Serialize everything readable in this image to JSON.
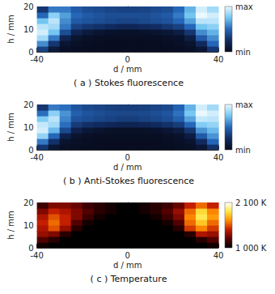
{
  "chart_data": [
    {
      "type": "heatmap",
      "title": "( a ) Stokes fluorescence",
      "x_label": "d / mm",
      "y_label": "h / mm",
      "xlim": [
        -40,
        40
      ],
      "xticks": [
        -40,
        0,
        40
      ],
      "ylim": [
        0,
        20
      ],
      "yticks": [
        0,
        10,
        20
      ],
      "x_edges": [
        -40,
        -35,
        -30,
        -25,
        -20,
        -15,
        -10,
        -5,
        0,
        5,
        10,
        15,
        20,
        25,
        30,
        35,
        40
      ],
      "y_edges": [
        0,
        2.5,
        5,
        7.5,
        10,
        12.5,
        15,
        17.5,
        20
      ],
      "cells": [
        [
          0.35,
          0.12,
          0.05,
          0.03,
          0.02,
          0.02,
          0.02,
          0.02,
          0.02,
          0.02,
          0.02,
          0.02,
          0.03,
          0.05,
          0.1,
          0.3
        ],
        [
          0.6,
          0.3,
          0.08,
          0.04,
          0.03,
          0.02,
          0.02,
          0.02,
          0.02,
          0.02,
          0.02,
          0.03,
          0.04,
          0.07,
          0.25,
          0.5
        ],
        [
          0.85,
          0.55,
          0.2,
          0.08,
          0.05,
          0.03,
          0.03,
          0.03,
          0.03,
          0.03,
          0.03,
          0.04,
          0.06,
          0.15,
          0.45,
          0.6
        ],
        [
          0.95,
          0.75,
          0.4,
          0.2,
          0.12,
          0.08,
          0.06,
          0.05,
          0.05,
          0.06,
          0.07,
          0.1,
          0.15,
          0.3,
          0.6,
          0.7
        ],
        [
          0.9,
          0.85,
          0.55,
          0.35,
          0.3,
          0.28,
          0.25,
          0.22,
          0.22,
          0.24,
          0.26,
          0.3,
          0.35,
          0.5,
          0.75,
          0.8
        ],
        [
          0.75,
          0.9,
          0.6,
          0.45,
          0.42,
          0.4,
          0.38,
          0.36,
          0.36,
          0.38,
          0.4,
          0.42,
          0.5,
          0.65,
          0.9,
          0.9
        ],
        [
          0.5,
          0.8,
          0.65,
          0.5,
          0.45,
          0.42,
          0.4,
          0.4,
          0.4,
          0.4,
          0.42,
          0.45,
          0.55,
          0.75,
          1.0,
          0.95
        ],
        [
          0.3,
          0.55,
          0.55,
          0.45,
          0.4,
          0.38,
          0.36,
          0.35,
          0.35,
          0.36,
          0.38,
          0.4,
          0.5,
          0.7,
          0.95,
          0.85
        ]
      ],
      "colorbar": {
        "range": [
          0,
          1
        ],
        "ticks": [
          {
            "value": 0,
            "label": "min"
          },
          {
            "value": 1,
            "label": "max"
          }
        ]
      }
    },
    {
      "type": "heatmap",
      "title": "( b ) Anti-Stokes fluorescence",
      "x_label": "d / mm",
      "y_label": "h / mm",
      "xlim": [
        -40,
        40
      ],
      "xticks": [
        -40,
        0,
        40
      ],
      "ylim": [
        0,
        20
      ],
      "yticks": [
        0,
        10,
        20
      ],
      "x_edges": [
        -40,
        -35,
        -30,
        -25,
        -20,
        -15,
        -10,
        -5,
        0,
        5,
        10,
        15,
        20,
        25,
        30,
        35,
        40
      ],
      "y_edges": [
        0,
        2.5,
        5,
        7.5,
        10,
        12.5,
        15,
        17.5,
        20
      ],
      "cells": [
        [
          0.3,
          0.1,
          0.04,
          0.03,
          0.02,
          0.02,
          0.02,
          0.02,
          0.02,
          0.02,
          0.02,
          0.02,
          0.03,
          0.05,
          0.1,
          0.28
        ],
        [
          0.55,
          0.28,
          0.07,
          0.04,
          0.03,
          0.02,
          0.02,
          0.02,
          0.02,
          0.02,
          0.02,
          0.03,
          0.04,
          0.07,
          0.25,
          0.5
        ],
        [
          0.82,
          0.5,
          0.18,
          0.07,
          0.04,
          0.03,
          0.03,
          0.03,
          0.03,
          0.03,
          0.03,
          0.04,
          0.06,
          0.14,
          0.45,
          0.62
        ],
        [
          0.95,
          0.72,
          0.38,
          0.18,
          0.1,
          0.07,
          0.05,
          0.05,
          0.05,
          0.05,
          0.06,
          0.09,
          0.14,
          0.3,
          0.62,
          0.72
        ],
        [
          0.92,
          0.85,
          0.52,
          0.32,
          0.27,
          0.25,
          0.22,
          0.2,
          0.2,
          0.22,
          0.24,
          0.28,
          0.33,
          0.5,
          0.78,
          0.82
        ],
        [
          0.78,
          0.9,
          0.58,
          0.42,
          0.4,
          0.37,
          0.35,
          0.33,
          0.33,
          0.35,
          0.37,
          0.4,
          0.48,
          0.66,
          0.92,
          0.9
        ],
        [
          0.52,
          0.8,
          0.62,
          0.47,
          0.42,
          0.4,
          0.38,
          0.37,
          0.37,
          0.38,
          0.4,
          0.43,
          0.53,
          0.76,
          1.0,
          0.95
        ],
        [
          0.3,
          0.55,
          0.52,
          0.43,
          0.38,
          0.36,
          0.34,
          0.33,
          0.33,
          0.34,
          0.36,
          0.38,
          0.48,
          0.7,
          0.95,
          0.85
        ]
      ],
      "colorbar": {
        "range": [
          0,
          1
        ],
        "ticks": [
          {
            "value": 0,
            "label": "min"
          },
          {
            "value": 1,
            "label": "max"
          }
        ]
      }
    },
    {
      "type": "heatmap",
      "title": "( c ) Temperature",
      "x_label": "d / mm",
      "y_label": "h / mm",
      "xlim": [
        -40,
        40
      ],
      "xticks": [
        -40,
        0,
        40
      ],
      "ylim": [
        0,
        20
      ],
      "yticks": [
        0,
        10,
        20
      ],
      "x_edges": [
        -40,
        -35,
        -30,
        -25,
        -20,
        -15,
        -10,
        -5,
        0,
        5,
        10,
        15,
        20,
        25,
        30,
        35,
        40
      ],
      "y_edges": [
        0,
        2.5,
        5,
        7.5,
        10,
        12.5,
        15,
        17.5,
        20
      ],
      "cells": [
        [
          1050,
          1000,
          1000,
          1000,
          1000,
          1000,
          1000,
          1000,
          1000,
          1000,
          1000,
          1000,
          1000,
          1000,
          1000,
          1050
        ],
        [
          1200,
          1100,
          1000,
          1000,
          1000,
          1000,
          1000,
          1000,
          1000,
          1000,
          1000,
          1000,
          1000,
          1000,
          1100,
          1200
        ],
        [
          1350,
          1300,
          1100,
          1000,
          1000,
          1000,
          1000,
          1000,
          1000,
          1000,
          1000,
          1000,
          1000,
          1100,
          1400,
          1350
        ],
        [
          1400,
          1550,
          1350,
          1100,
          1000,
          1000,
          1000,
          1000,
          1000,
          1000,
          1000,
          1000,
          1100,
          1500,
          1650,
          1500
        ],
        [
          1450,
          1600,
          1450,
          1200,
          1050,
          1000,
          1000,
          1000,
          1000,
          1000,
          1000,
          1050,
          1200,
          1600,
          1800,
          1600
        ],
        [
          1400,
          1550,
          1450,
          1300,
          1150,
          1050,
          1000,
          1000,
          1000,
          1000,
          1050,
          1150,
          1300,
          1650,
          1900,
          1700
        ],
        [
          1300,
          1450,
          1400,
          1300,
          1200,
          1100,
          1050,
          1000,
          1000,
          1050,
          1100,
          1200,
          1350,
          1600,
          1850,
          1650
        ],
        [
          1150,
          1300,
          1300,
          1250,
          1150,
          1100,
          1050,
          1000,
          1000,
          1050,
          1100,
          1150,
          1250,
          1450,
          1600,
          1450
        ]
      ],
      "colorbar": {
        "range": [
          1000,
          2100
        ],
        "ticks": [
          {
            "value": 1000,
            "label": "1 000 K"
          },
          {
            "value": 2100,
            "label": "2 100 K"
          }
        ]
      }
    }
  ]
}
